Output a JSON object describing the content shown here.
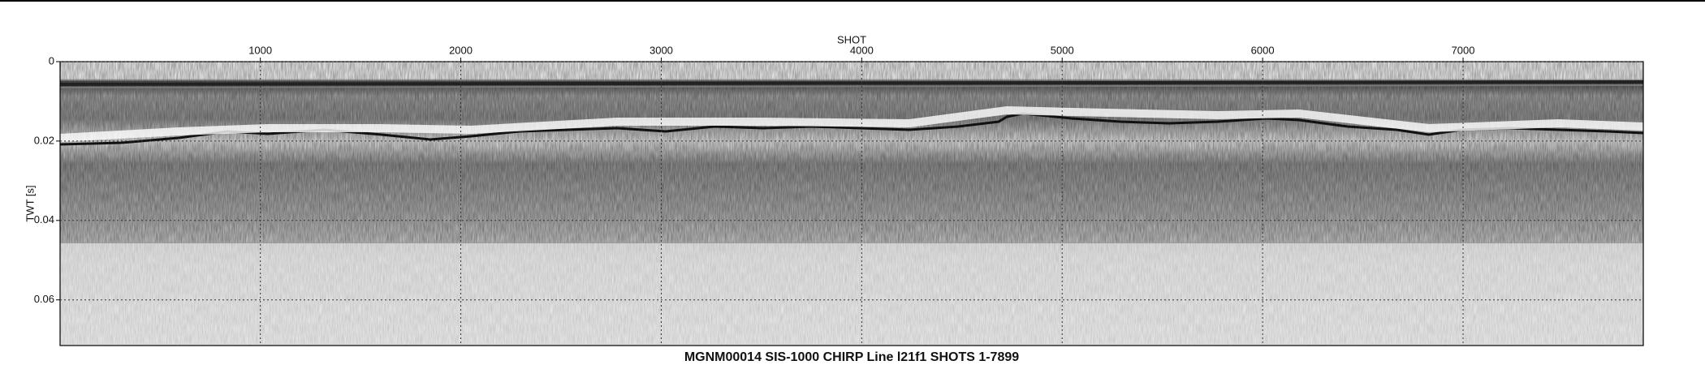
{
  "chart_data": {
    "type": "seismic",
    "title": "MGNM00014 SIS-1000 CHIRP Line l21f1 SHOTS 1-7899",
    "x_label": "SHOT",
    "y_label": "TWT [s]",
    "xlim": [
      1,
      7899
    ],
    "xticks": [
      1000,
      2000,
      3000,
      4000,
      5000,
      6000,
      7000
    ],
    "ylim": [
      0,
      0.0715
    ],
    "yticks": [
      0,
      0.02,
      0.04,
      0.06
    ],
    "y_inverted": true,
    "grid": true
  }
}
